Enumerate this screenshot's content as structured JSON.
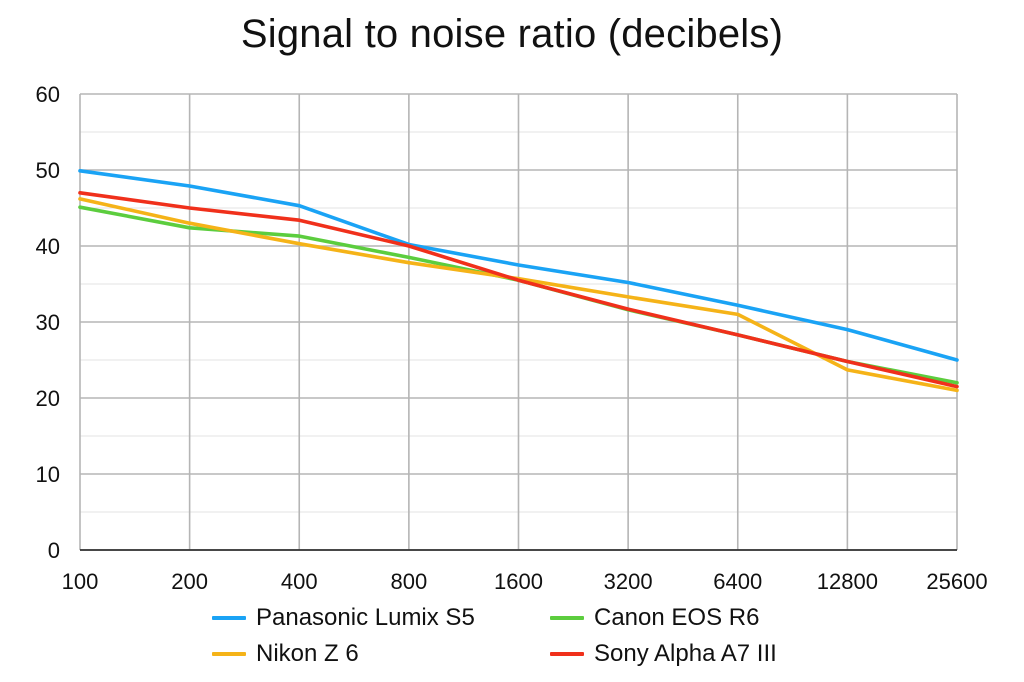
{
  "chart_data": {
    "type": "line",
    "title": "Signal to noise ratio (decibels)",
    "xlabel": "",
    "ylabel": "",
    "categories": [
      "100",
      "200",
      "400",
      "800",
      "1600",
      "3200",
      "6400",
      "12800",
      "25600"
    ],
    "ylim": [
      0,
      60
    ],
    "yticks": [
      0,
      10,
      20,
      30,
      40,
      50,
      60
    ],
    "grid": true,
    "legend_position": "bottom",
    "series": [
      {
        "name": "Panasonic Lumix S5",
        "color": "#1aa3f5",
        "values": [
          49.9,
          47.9,
          45.3,
          40.2,
          37.5,
          35.2,
          32.2,
          29.0,
          25.0
        ]
      },
      {
        "name": "Nikon Z 6",
        "color": "#f5b318",
        "values": [
          46.2,
          43.0,
          40.3,
          37.8,
          35.7,
          33.3,
          31.0,
          23.7,
          21.0
        ]
      },
      {
        "name": "Canon EOS R6",
        "color": "#5ccd3e",
        "values": [
          45.1,
          42.4,
          41.3,
          38.5,
          35.5,
          31.6,
          28.3,
          24.8,
          22.0
        ]
      },
      {
        "name": "Sony Alpha A7 III",
        "color": "#f0301b",
        "values": [
          47.0,
          45.0,
          43.4,
          40.0,
          35.5,
          31.7,
          28.3,
          24.8,
          21.5
        ]
      }
    ]
  }
}
